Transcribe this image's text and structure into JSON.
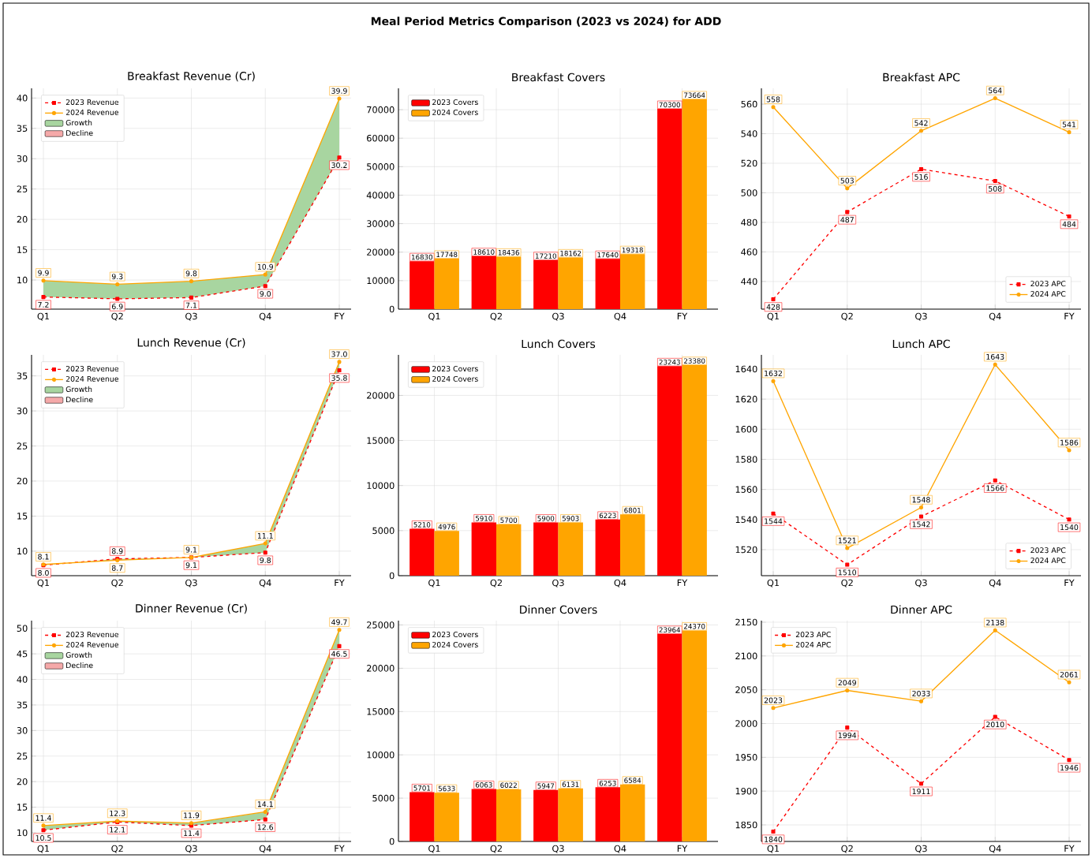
{
  "chart_data": [
    {
      "type": "other",
      "title": "Meal Period Metrics Comparison (2023 vs 2024) for ADD"
    },
    {
      "type": "line",
      "title": "Breakfast Revenue (Cr)",
      "categories": [
        "Q1",
        "Q2",
        "Q3",
        "Q4",
        "FY"
      ],
      "ylim": [
        5.2,
        41.6
      ],
      "yticks": [
        10,
        15,
        20,
        25,
        30,
        35,
        40
      ],
      "grid": true,
      "legend": "top left",
      "series": [
        {
          "name": "2023 Revenue",
          "type": "line",
          "color": "#ff0000",
          "marker": "square",
          "line_style": "dashed",
          "values": [
            7.2,
            6.9,
            7.1,
            9.0,
            30.2
          ],
          "value_labels": [
            "7.2",
            "6.9",
            "7.1",
            "9.0",
            "30.2"
          ]
        },
        {
          "name": "2024 Revenue",
          "type": "line",
          "color": "#ffa500",
          "marker": "circle",
          "line_style": "solid",
          "values": [
            9.9,
            9.3,
            9.8,
            10.9,
            39.9
          ],
          "value_labels": [
            "9.9",
            "9.3",
            "9.8",
            "10.9",
            "39.9"
          ],
          "lower": [
            7.2,
            6.9,
            7.1,
            9.0,
            30.2
          ],
          "upper": [
            9.9,
            9.3,
            9.8,
            10.9,
            39.9
          ]
        },
        {
          "name": "Growth",
          "type": "area",
          "color": "#a8d5a0",
          "values": [
            null,
            null,
            null,
            null,
            null
          ]
        },
        {
          "name": "Decline",
          "type": "area",
          "color": "#f5a9a9",
          "values": [
            null,
            null,
            null,
            null,
            null
          ]
        }
      ]
    },
    {
      "type": "bar",
      "title": "Breakfast Covers",
      "categories": [
        "Q1",
        "Q2",
        "Q3",
        "Q4",
        "FY"
      ],
      "ylim": [
        0,
        77500
      ],
      "yticks": [
        0,
        10000,
        20000,
        30000,
        40000,
        50000,
        60000,
        70000
      ],
      "grid": true,
      "legend": "top left",
      "data_labels": true,
      "series": [
        {
          "name": "2023 Covers",
          "color": "#ff0000",
          "values": [
            16830,
            18610,
            17210,
            17640,
            70300
          ]
        },
        {
          "name": "2024 Covers",
          "color": "#ffa500",
          "values": [
            17748,
            18436,
            18162,
            19318,
            73664
          ]
        }
      ]
    },
    {
      "type": "line",
      "title": "Breakfast APC",
      "categories": [
        "Q1",
        "Q2",
        "Q3",
        "Q4",
        "FY"
      ],
      "ylim": [
        421.3,
        570.7
      ],
      "yticks": [
        440,
        460,
        480,
        500,
        520,
        540,
        560
      ],
      "grid": true,
      "legend": "bottom right",
      "data_labels": true,
      "series": [
        {
          "name": "2023 APC",
          "type": "line",
          "color": "#ff0000",
          "marker": "square",
          "line_style": "dashed",
          "values": [
            428,
            487,
            516,
            508,
            484
          ]
        },
        {
          "name": "2024 APC",
          "type": "line",
          "color": "#ffa500",
          "marker": "circle",
          "line_style": "solid",
          "values": [
            558,
            503,
            542,
            564,
            541
          ]
        }
      ]
    },
    {
      "type": "line",
      "title": "Lunch Revenue (Cr)",
      "categories": [
        "Q1",
        "Q2",
        "Q3",
        "Q4",
        "FY"
      ],
      "ylim": [
        6.5,
        38.0
      ],
      "yticks": [
        10,
        15,
        20,
        25,
        30,
        35
      ],
      "grid": true,
      "legend": "top left",
      "series": [
        {
          "name": "2023 Revenue",
          "type": "line",
          "color": "#ff0000",
          "marker": "square",
          "line_style": "dashed",
          "values": [
            8.0,
            8.9,
            9.1,
            9.8,
            35.8
          ],
          "value_labels": [
            "8.0",
            "8.9",
            "9.1",
            "9.8",
            "35.8"
          ]
        },
        {
          "name": "2024 Revenue",
          "type": "line",
          "color": "#ffa500",
          "marker": "circle",
          "line_style": "solid",
          "values": [
            8.1,
            8.7,
            9.1,
            11.1,
            37.0
          ],
          "value_labels": [
            "8.1",
            "8.7",
            "9.1",
            "11.1",
            "37.0"
          ],
          "lower": [
            8.0,
            8.9,
            9.1,
            9.8,
            35.8
          ],
          "upper": [
            8.1,
            8.7,
            9.1,
            11.1,
            37.0
          ]
        },
        {
          "name": "Growth",
          "type": "area",
          "color": "#a8d5a0",
          "values": [
            null,
            null,
            null,
            null,
            null
          ]
        },
        {
          "name": "Decline",
          "type": "area",
          "color": "#f5a9a9",
          "values": [
            null,
            null,
            null,
            null,
            null
          ]
        }
      ]
    },
    {
      "type": "bar",
      "title": "Lunch Covers",
      "categories": [
        "Q1",
        "Q2",
        "Q3",
        "Q4",
        "FY"
      ],
      "ylim": [
        0,
        24500
      ],
      "yticks": [
        0,
        5000,
        10000,
        15000,
        20000
      ],
      "grid": true,
      "legend": "top left",
      "data_labels": true,
      "series": [
        {
          "name": "2023 Covers",
          "color": "#ff0000",
          "values": [
            5210,
            5910,
            5900,
            6223,
            23243
          ]
        },
        {
          "name": "2024 Covers",
          "color": "#ffa500",
          "values": [
            4976,
            5700,
            5903,
            6801,
            23380
          ]
        }
      ]
    },
    {
      "type": "line",
      "title": "Lunch APC",
      "categories": [
        "Q1",
        "Q2",
        "Q3",
        "Q4",
        "FY"
      ],
      "ylim": [
        1502.7,
        1649.4
      ],
      "yticks": [
        1520,
        1540,
        1560,
        1580,
        1600,
        1620,
        1640
      ],
      "grid": true,
      "legend": "bottom right",
      "data_labels": true,
      "series": [
        {
          "name": "2023 APC",
          "type": "line",
          "color": "#ff0000",
          "marker": "square",
          "line_style": "dashed",
          "values": [
            1544,
            1510,
            1542,
            1566,
            1540
          ]
        },
        {
          "name": "2024 APC",
          "type": "line",
          "color": "#ffa500",
          "marker": "circle",
          "line_style": "solid",
          "values": [
            1632,
            1521,
            1548,
            1643,
            1586
          ]
        }
      ]
    },
    {
      "type": "line",
      "title": "Dinner Revenue (Cr)",
      "categories": [
        "Q1",
        "Q2",
        "Q3",
        "Q4",
        "FY"
      ],
      "ylim": [
        8.3,
        51.5
      ],
      "yticks": [
        10,
        15,
        20,
        25,
        30,
        35,
        40,
        45,
        50
      ],
      "grid": true,
      "legend": "top left",
      "series": [
        {
          "name": "2023 Revenue",
          "type": "line",
          "color": "#ff0000",
          "marker": "square",
          "line_style": "dashed",
          "values": [
            10.5,
            12.1,
            11.4,
            12.6,
            46.5
          ],
          "value_labels": [
            "10.5",
            "12.1",
            "11.4",
            "12.6",
            "46.5"
          ]
        },
        {
          "name": "2024 Revenue",
          "type": "line",
          "color": "#ffa500",
          "marker": "circle",
          "line_style": "solid",
          "values": [
            11.4,
            12.3,
            11.9,
            14.1,
            49.7
          ],
          "value_labels": [
            "11.4",
            "12.3",
            "11.9",
            "14.1",
            "49.7"
          ],
          "lower": [
            10.5,
            12.1,
            11.4,
            12.6,
            46.5
          ],
          "upper": [
            11.4,
            12.3,
            11.9,
            14.1,
            49.7
          ]
        },
        {
          "name": "Growth",
          "type": "area",
          "color": "#a8d5a0",
          "values": [
            null,
            null,
            null,
            null,
            null
          ]
        },
        {
          "name": "Decline",
          "type": "area",
          "color": "#f5a9a9",
          "values": [
            null,
            null,
            null,
            null,
            null
          ]
        }
      ]
    },
    {
      "type": "bar",
      "title": "Dinner Covers",
      "categories": [
        "Q1",
        "Q2",
        "Q3",
        "Q4",
        "FY"
      ],
      "ylim": [
        0,
        25500
      ],
      "yticks": [
        0,
        5000,
        10000,
        15000,
        20000,
        25000
      ],
      "grid": true,
      "legend": "top left",
      "data_labels": true,
      "series": [
        {
          "name": "2023 Covers",
          "color": "#ff0000",
          "values": [
            5701,
            6063,
            5947,
            6253,
            23964
          ]
        },
        {
          "name": "2024 Covers",
          "color": "#ffa500",
          "values": [
            5633,
            6022,
            6131,
            6584,
            24370
          ]
        }
      ]
    },
    {
      "type": "line",
      "title": "Dinner APC",
      "categories": [
        "Q1",
        "Q2",
        "Q3",
        "Q4",
        "FY"
      ],
      "ylim": [
        1825.5,
        2152.3
      ],
      "yticks": [
        1850,
        1900,
        1950,
        2000,
        2050,
        2100,
        2150
      ],
      "grid": true,
      "legend": "top left",
      "data_labels": true,
      "series": [
        {
          "name": "2023 APC",
          "type": "line",
          "color": "#ff0000",
          "marker": "square",
          "line_style": "dashed",
          "values": [
            1840,
            1994,
            1911,
            2010,
            1946
          ]
        },
        {
          "name": "2024 APC",
          "type": "line",
          "color": "#ffa500",
          "marker": "circle",
          "line_style": "solid",
          "values": [
            2023,
            2049,
            2033,
            2138,
            2061
          ]
        }
      ]
    }
  ]
}
